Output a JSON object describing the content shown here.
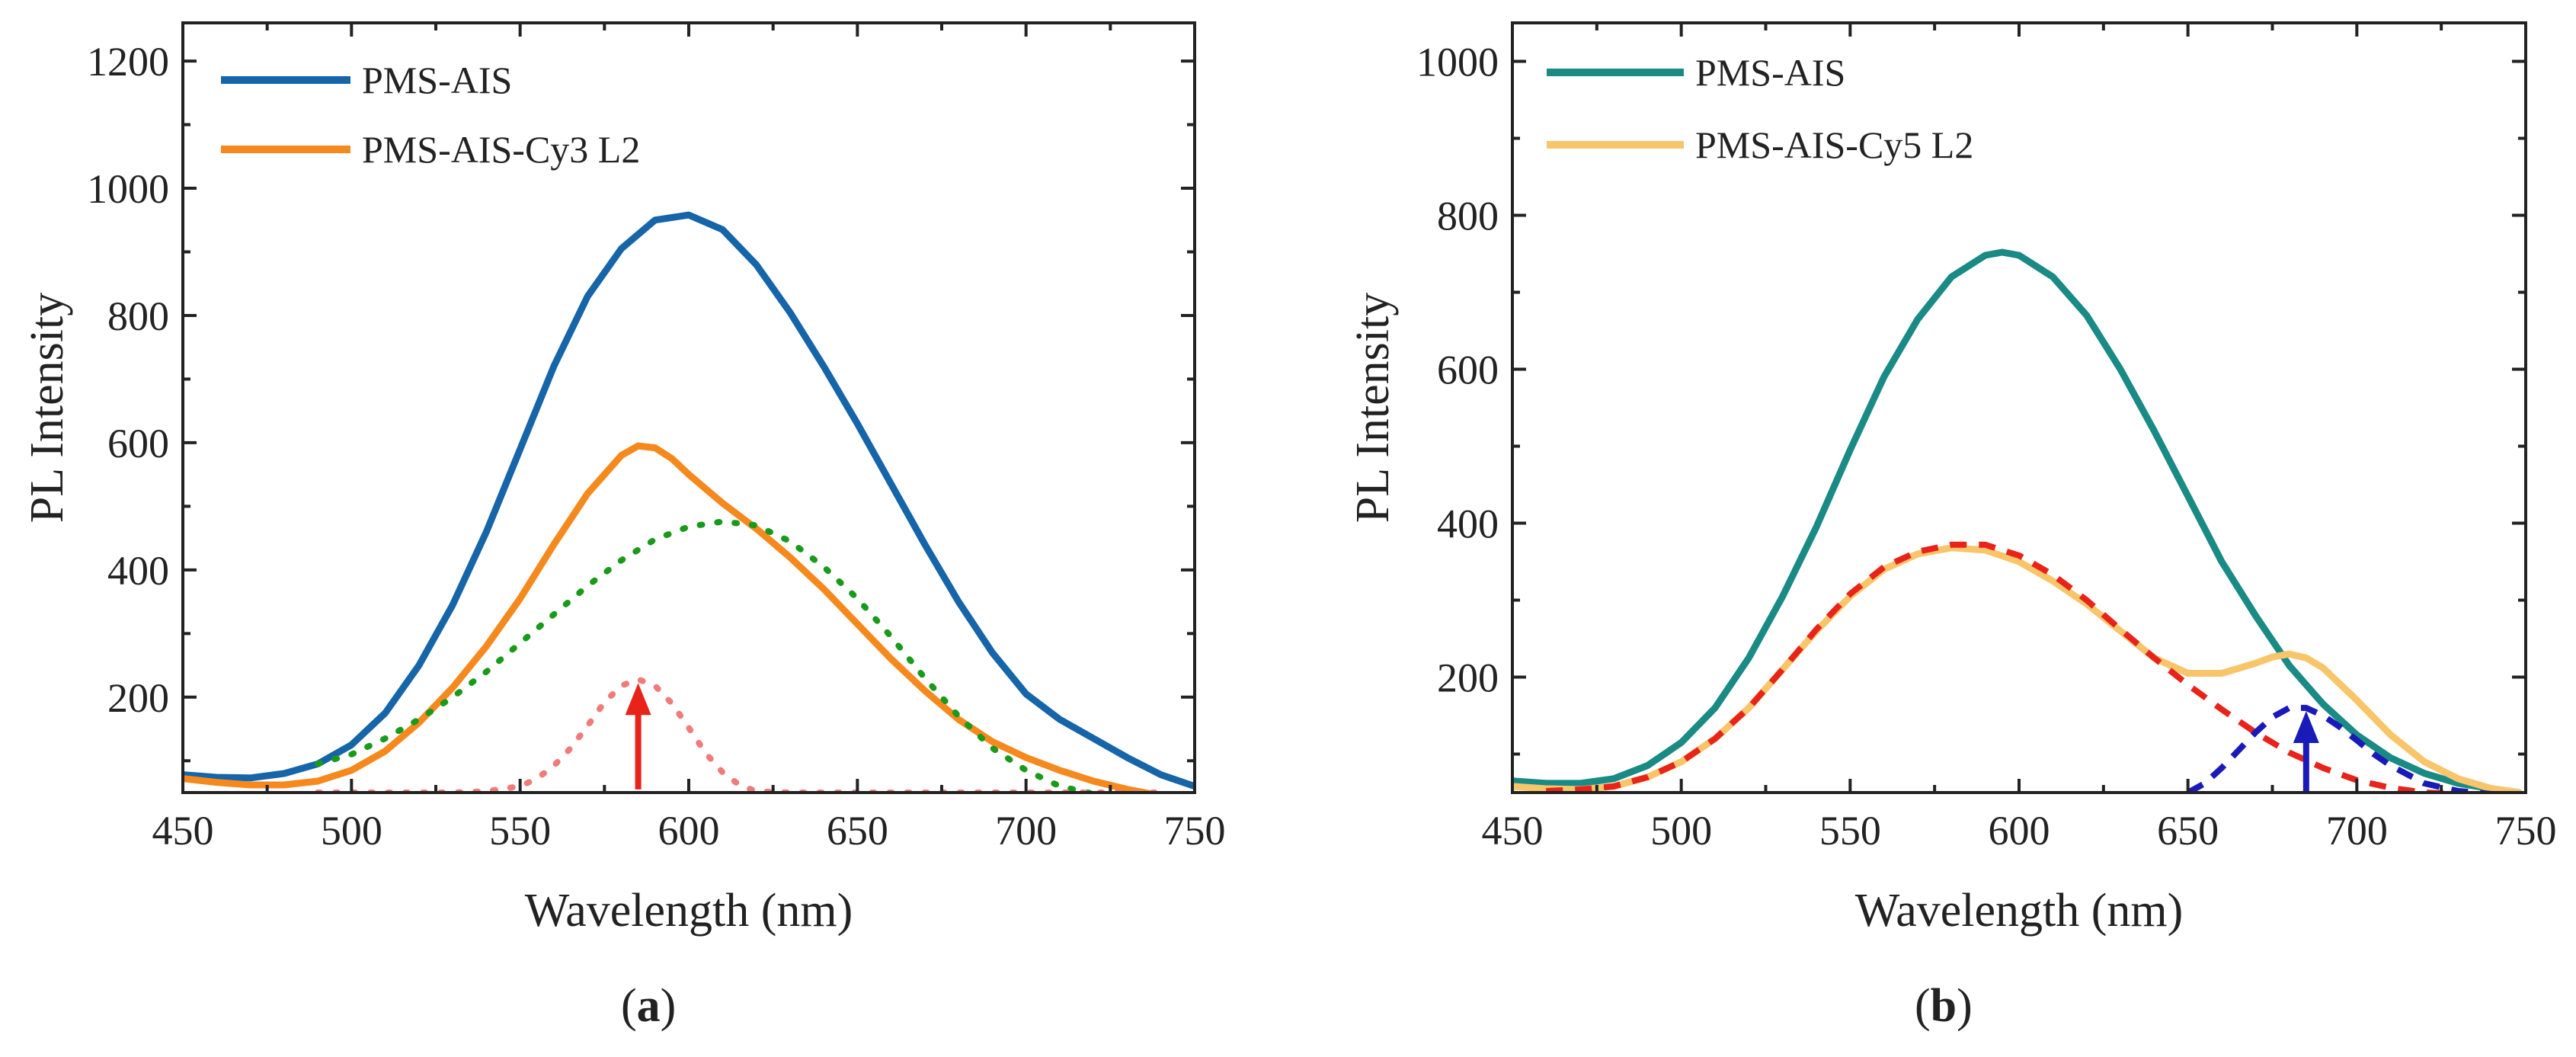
{
  "chart_data": [
    {
      "type": "line",
      "panel_label": "a",
      "xlabel": "Wavelength (nm)",
      "ylabel": "PL Intensity",
      "xlim": [
        450,
        750
      ],
      "ylim": [
        50,
        1260
      ],
      "xticks": [
        450,
        500,
        550,
        600,
        650,
        700,
        750
      ],
      "yticks": [
        200,
        400,
        600,
        800,
        1000,
        1200
      ],
      "legend_position": "top-left",
      "series": [
        {
          "name": "PMS-AIS",
          "color": "#1565a8",
          "style": "solid",
          "legend": true,
          "x": [
            450,
            460,
            470,
            480,
            490,
            500,
            510,
            520,
            530,
            540,
            550,
            560,
            570,
            580,
            590,
            600,
            610,
            620,
            630,
            640,
            650,
            660,
            670,
            680,
            690,
            700,
            710,
            720,
            730,
            740,
            750
          ],
          "y": [
            78,
            74,
            73,
            80,
            95,
            125,
            175,
            250,
            345,
            460,
            590,
            720,
            830,
            905,
            950,
            958,
            935,
            880,
            805,
            720,
            630,
            535,
            440,
            350,
            270,
            205,
            165,
            135,
            105,
            78,
            60
          ]
        },
        {
          "name": "PMS-AIS-Cy3 L2",
          "color": "#f5891e",
          "style": "solid",
          "legend": true,
          "x": [
            450,
            460,
            470,
            480,
            490,
            500,
            510,
            520,
            530,
            540,
            550,
            560,
            570,
            580,
            585,
            590,
            595,
            600,
            610,
            620,
            630,
            640,
            650,
            660,
            670,
            680,
            690,
            700,
            710,
            720,
            730,
            740
          ],
          "y": [
            72,
            66,
            62,
            62,
            68,
            85,
            115,
            160,
            215,
            280,
            355,
            440,
            520,
            580,
            595,
            592,
            575,
            550,
            505,
            465,
            420,
            370,
            315,
            260,
            210,
            165,
            130,
            105,
            85,
            68,
            55,
            45
          ]
        },
        {
          "name": "Fit component 1",
          "color": "#1a9a1a",
          "style": "dotted",
          "legend": false,
          "x": [
            490,
            500,
            510,
            520,
            530,
            540,
            550,
            560,
            570,
            580,
            590,
            600,
            610,
            620,
            630,
            640,
            650,
            660,
            670,
            680,
            690,
            700,
            710,
            720,
            730
          ],
          "y": [
            95,
            110,
            135,
            165,
            200,
            240,
            285,
            330,
            375,
            415,
            448,
            468,
            476,
            470,
            445,
            405,
            355,
            295,
            230,
            170,
            120,
            85,
            60,
            48,
            42
          ]
        },
        {
          "name": "Fit component 2",
          "color": "#f07b7b",
          "style": "dotted",
          "legend": false,
          "x": [
            490,
            500,
            510,
            520,
            530,
            540,
            550,
            555,
            560,
            565,
            570,
            575,
            580,
            585,
            590,
            595,
            600,
            605,
            610,
            615,
            620,
            630,
            640,
            650,
            660,
            670,
            680,
            690,
            700,
            710,
            720,
            730,
            740
          ],
          "y": [
            50,
            50,
            50,
            50,
            50,
            52,
            60,
            72,
            92,
            120,
            155,
            192,
            218,
            228,
            218,
            190,
            152,
            112,
            82,
            62,
            52,
            50,
            50,
            50,
            50,
            50,
            50,
            50,
            50,
            50,
            50,
            50,
            50
          ]
        }
      ],
      "annotations": [
        {
          "type": "arrow",
          "x": 585,
          "y_from": 55,
          "y_to": 215,
          "color": "#e8231a"
        }
      ]
    },
    {
      "type": "line",
      "panel_label": "b",
      "xlabel": "Wavelength (nm)",
      "ylabel": "PL Intensity",
      "xlim": [
        450,
        750
      ],
      "ylim": [
        50,
        1050
      ],
      "xticks": [
        450,
        500,
        550,
        600,
        650,
        700,
        750
      ],
      "yticks": [
        200,
        400,
        600,
        800,
        1000
      ],
      "legend_position": "top-left",
      "series": [
        {
          "name": "PMS-AIS",
          "color": "#1a8a85",
          "style": "solid",
          "legend": true,
          "x": [
            450,
            460,
            470,
            480,
            490,
            500,
            510,
            520,
            530,
            540,
            550,
            560,
            570,
            580,
            590,
            595,
            600,
            610,
            620,
            630,
            640,
            650,
            660,
            670,
            680,
            690,
            700,
            710,
            720,
            730,
            740,
            748
          ],
          "y": [
            65,
            62,
            62,
            68,
            85,
            115,
            160,
            225,
            305,
            395,
            495,
            590,
            665,
            720,
            748,
            752,
            748,
            720,
            670,
            600,
            520,
            435,
            350,
            280,
            215,
            165,
            125,
            95,
            75,
            62,
            55,
            50
          ]
        },
        {
          "name": "PMS-AIS-Cy5 L2",
          "color": "#f8c56a",
          "style": "solid",
          "legend": true,
          "x": [
            450,
            460,
            470,
            480,
            490,
            500,
            510,
            520,
            530,
            540,
            550,
            560,
            570,
            580,
            590,
            600,
            610,
            620,
            630,
            640,
            650,
            660,
            670,
            675,
            680,
            685,
            690,
            700,
            710,
            720,
            730,
            740,
            748
          ],
          "y": [
            58,
            55,
            54,
            58,
            70,
            90,
            120,
            160,
            210,
            260,
            305,
            340,
            360,
            368,
            365,
            350,
            325,
            295,
            260,
            225,
            205,
            205,
            218,
            226,
            230,
            225,
            212,
            170,
            125,
            90,
            68,
            55,
            50
          ]
        },
        {
          "name": "Fit component 1",
          "color": "#e8231a",
          "style": "dashed",
          "legend": false,
          "x": [
            460,
            470,
            480,
            490,
            500,
            510,
            520,
            530,
            540,
            550,
            560,
            570,
            580,
            590,
            600,
            610,
            620,
            630,
            640,
            650,
            660,
            670,
            680,
            690,
            700,
            710,
            720,
            730,
            740
          ],
          "y": [
            52,
            54,
            58,
            70,
            90,
            120,
            160,
            210,
            262,
            308,
            343,
            363,
            372,
            372,
            358,
            333,
            300,
            262,
            225,
            190,
            158,
            128,
            102,
            82,
            66,
            56,
            50,
            48,
            47
          ]
        },
        {
          "name": "Fit component 2",
          "color": "#1a1ab8",
          "style": "dashed",
          "legend": false,
          "x": [
            650,
            655,
            660,
            665,
            670,
            675,
            680,
            685,
            690,
            695,
            700,
            705,
            710,
            720,
            730,
            740,
            748
          ],
          "y": [
            50,
            62,
            82,
            105,
            128,
            148,
            160,
            160,
            150,
            135,
            118,
            100,
            85,
            62,
            52,
            48,
            47
          ]
        }
      ],
      "annotations": [
        {
          "type": "arrow",
          "x": 685,
          "y_from": 52,
          "y_to": 150,
          "color": "#1a1ab8"
        }
      ]
    }
  ]
}
